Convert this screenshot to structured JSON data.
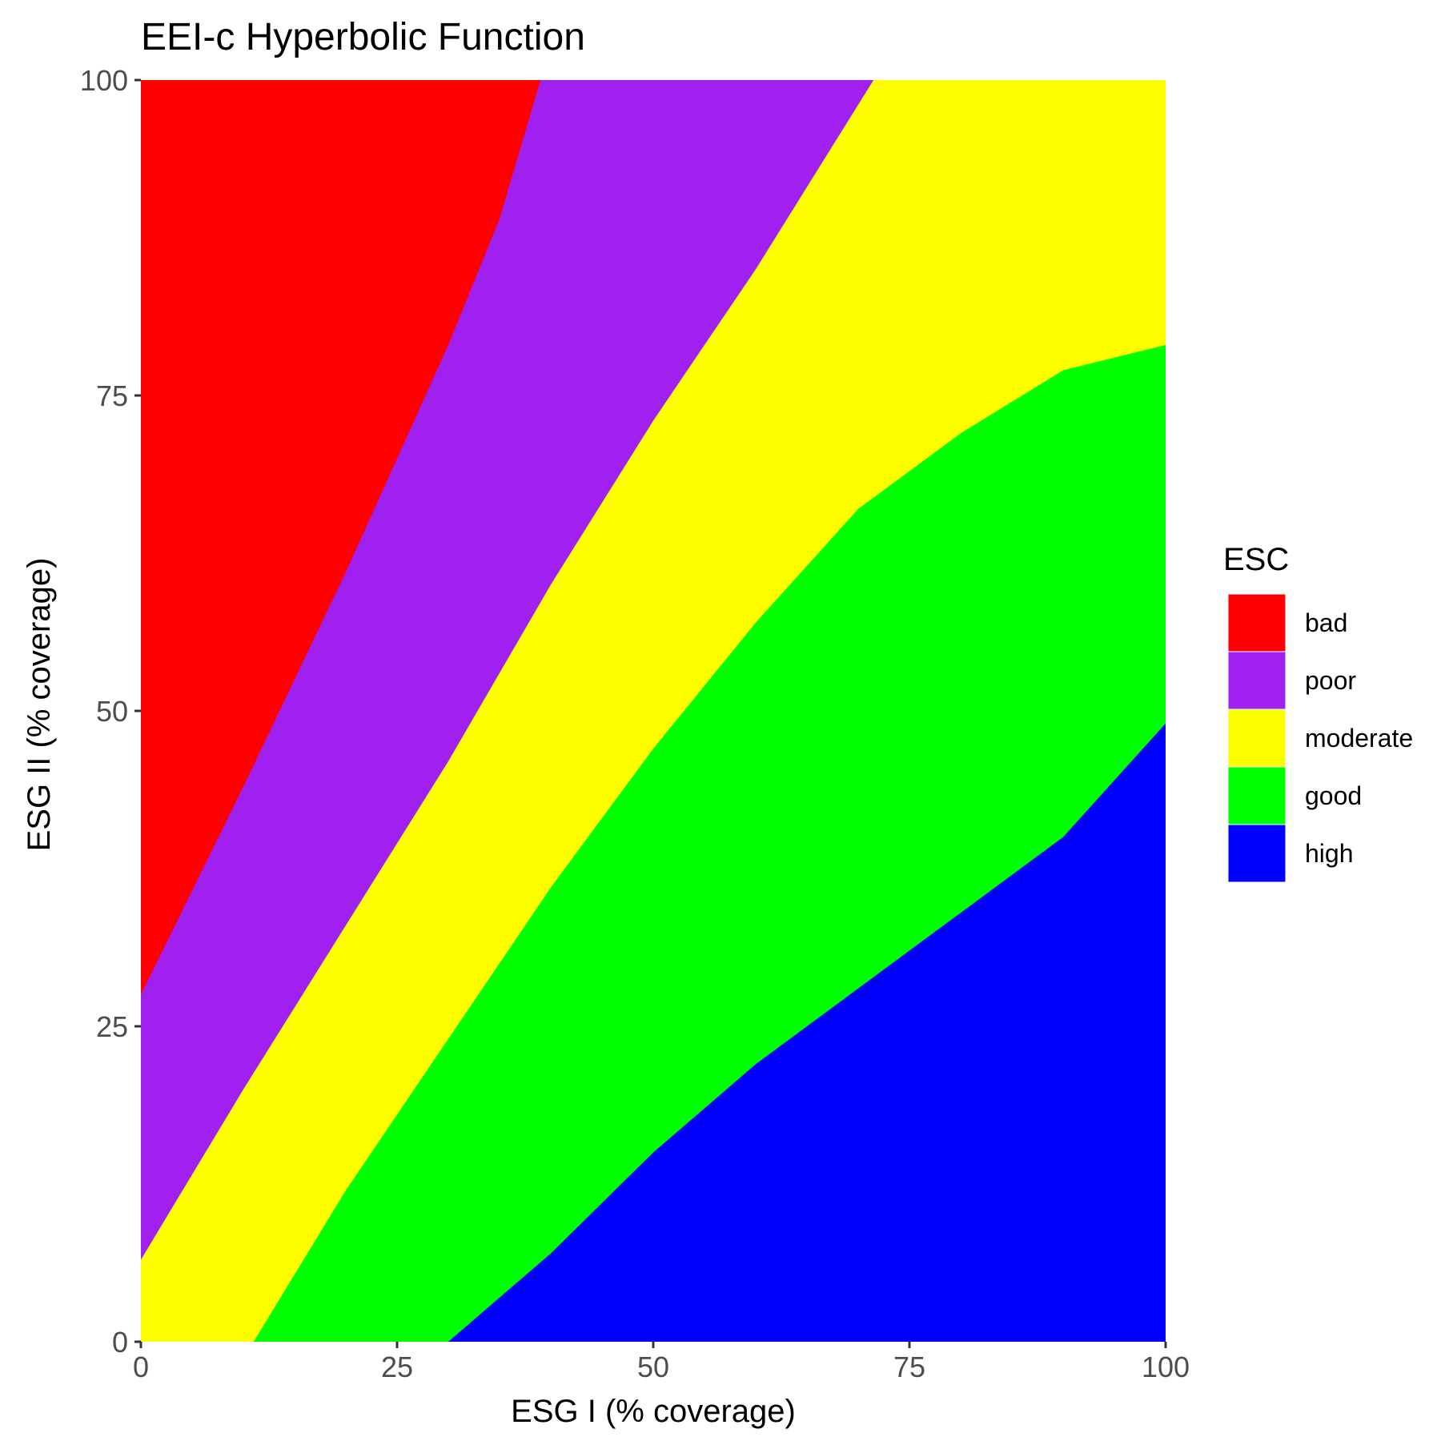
{
  "chart_data": {
    "type": "area",
    "title": "EEI-c Hyperbolic Function",
    "xlabel": "ESG I (% coverage)",
    "ylabel": "ESG II (% coverage)",
    "xlim": [
      0,
      100
    ],
    "ylim": [
      0,
      100
    ],
    "x_ticks": [
      0,
      25,
      50,
      75,
      100
    ],
    "y_ticks": [
      0,
      25,
      50,
      75,
      100
    ],
    "grid": false,
    "legend": {
      "title": "ESC",
      "position": "right",
      "entries": [
        {
          "label": "bad",
          "color": "#ff0000"
        },
        {
          "label": "poor",
          "color": "#a020f0"
        },
        {
          "label": "moderate",
          "color": "#ffff00"
        },
        {
          "label": "good",
          "color": "#00ff00"
        },
        {
          "label": "high",
          "color": "#0000ff"
        }
      ]
    },
    "regions": [
      {
        "name": "bad",
        "color": "#ff0000"
      },
      {
        "name": "poor",
        "color": "#a020f0"
      },
      {
        "name": "moderate",
        "color": "#ffff00"
      },
      {
        "name": "good",
        "color": "#00ff00"
      },
      {
        "name": "high",
        "color": "#0000ff"
      }
    ],
    "boundaries": [
      {
        "between": [
          "bad",
          "poor"
        ],
        "points": [
          [
            0,
            27.5
          ],
          [
            10,
            44
          ],
          [
            20,
            61
          ],
          [
            30,
            79
          ],
          [
            35,
            89
          ],
          [
            39,
            100
          ]
        ]
      },
      {
        "between": [
          "poor",
          "moderate"
        ],
        "points": [
          [
            0,
            6.5
          ],
          [
            10,
            20
          ],
          [
            20,
            33
          ],
          [
            30,
            46
          ],
          [
            40,
            60
          ],
          [
            50,
            73
          ],
          [
            60,
            85
          ],
          [
            71.5,
            100
          ]
        ]
      },
      {
        "between": [
          "moderate",
          "good"
        ],
        "points": [
          [
            11,
            0
          ],
          [
            20,
            12
          ],
          [
            30,
            24
          ],
          [
            40,
            36
          ],
          [
            50,
            47
          ],
          [
            60,
            57
          ],
          [
            70,
            66
          ],
          [
            80,
            72
          ],
          [
            90,
            77
          ],
          [
            100,
            79
          ]
        ]
      },
      {
        "between": [
          "good",
          "high"
        ],
        "points": [
          [
            30,
            0
          ],
          [
            40,
            7
          ],
          [
            50,
            15
          ],
          [
            60,
            22
          ],
          [
            70,
            28
          ],
          [
            80,
            34
          ],
          [
            90,
            40
          ],
          [
            100,
            49
          ]
        ]
      }
    ]
  }
}
